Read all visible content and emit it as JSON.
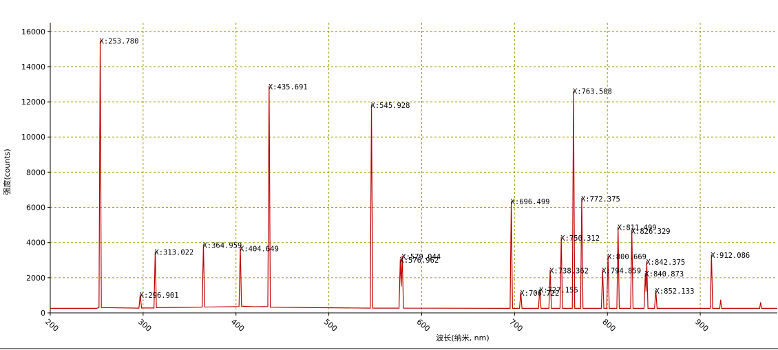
{
  "chart_data": {
    "type": "line",
    "xlabel": "波长(纳米, nm)",
    "ylabel": "强度(counts)",
    "xlim": [
      200,
      983
    ],
    "ylim": [
      0,
      16500
    ],
    "xticks": [
      200,
      300,
      400,
      500,
      600,
      700,
      800,
      900
    ],
    "yticks": [
      0,
      2000,
      4000,
      6000,
      8000,
      10000,
      12000,
      14000,
      16000
    ],
    "grid": true,
    "series": [
      {
        "color": "#c00000",
        "x": [
          200,
          250,
          252.5,
          253.78,
          255,
          295.5,
          296.9,
          298.3,
          311.7,
          313.02,
          314.3,
          363.6,
          364.96,
          366.3,
          403.3,
          404.65,
          406,
          420,
          434.3,
          435.69,
          437,
          544.6,
          545.93,
          547.3,
          575.6,
          576.96,
          578,
          579.04,
          580.4,
          695.2,
          696.5,
          697.8,
          705.4,
          706.72,
          708,
          725.8,
          727.16,
          728.5,
          737,
          738.36,
          739.7,
          749,
          750.31,
          751.6,
          762.2,
          763.51,
          764.8,
          771.1,
          772.38,
          773.7,
          793.5,
          794.86,
          796.2,
          799.3,
          800.67,
          802,
          810.2,
          811.5,
          812.8,
          825,
          826.33,
          827.6,
          839.5,
          840.87,
          841.6,
          842.38,
          843.7,
          850.8,
          852.13,
          853.5,
          910.8,
          912.09,
          913.4,
          921,
          922,
          923,
          964,
          965,
          966,
          983
        ],
        "values": [
          260,
          260,
          300,
          15500,
          300,
          270,
          1050,
          280,
          280,
          3500,
          300,
          320,
          3900,
          330,
          360,
          3700,
          380,
          350,
          360,
          12900,
          320,
          270,
          11850,
          270,
          270,
          3050,
          1500,
          3250,
          270,
          260,
          6380,
          260,
          260,
          1170,
          260,
          260,
          1350,
          260,
          260,
          2450,
          260,
          260,
          4300,
          260,
          260,
          12640,
          260,
          260,
          6530,
          260,
          260,
          2450,
          260,
          260,
          3250,
          260,
          260,
          4900,
          260,
          260,
          4700,
          260,
          260,
          2270,
          1200,
          2930,
          260,
          260,
          1290,
          260,
          260,
          3320,
          260,
          260,
          750,
          260,
          260,
          600,
          260,
          260
        ]
      }
    ],
    "annotations": [
      {
        "text": "X:253.780",
        "x": 253.78,
        "y": 15500
      },
      {
        "text": "X:296.901",
        "x": 296.9,
        "y": 1050
      },
      {
        "text": "X:313.022",
        "x": 313.02,
        "y": 3500
      },
      {
        "text": "X:364.959",
        "x": 364.96,
        "y": 3900
      },
      {
        "text": "X:404.649",
        "x": 404.65,
        "y": 3700
      },
      {
        "text": "X:435.691",
        "x": 435.69,
        "y": 12900
      },
      {
        "text": "X:545.928",
        "x": 545.93,
        "y": 11850
      },
      {
        "text": "X:576.962",
        "x": 576.96,
        "y": 3050
      },
      {
        "text": "X:579.044",
        "x": 579.04,
        "y": 3250
      },
      {
        "text": "X:696.499",
        "x": 696.5,
        "y": 6380
      },
      {
        "text": "X:706.722",
        "x": 706.72,
        "y": 1170
      },
      {
        "text": "X:727.155",
        "x": 727.16,
        "y": 1350
      },
      {
        "text": "X:738.362",
        "x": 738.36,
        "y": 2450
      },
      {
        "text": "X:750.312",
        "x": 750.31,
        "y": 4300
      },
      {
        "text": "X:763.508",
        "x": 763.51,
        "y": 12640
      },
      {
        "text": "X:772.375",
        "x": 772.38,
        "y": 6530
      },
      {
        "text": "X:794.859",
        "x": 794.86,
        "y": 2450
      },
      {
        "text": "X:800.669",
        "x": 800.67,
        "y": 3250
      },
      {
        "text": "X:811.499",
        "x": 811.5,
        "y": 4900
      },
      {
        "text": "X:826.329",
        "x": 826.33,
        "y": 4700
      },
      {
        "text": "X:840.873",
        "x": 840.87,
        "y": 2270
      },
      {
        "text": "X:842.375",
        "x": 842.38,
        "y": 2930
      },
      {
        "text": "X:852.133",
        "x": 852.13,
        "y": 1290
      },
      {
        "text": "X:912.086",
        "x": 912.09,
        "y": 3320
      }
    ]
  }
}
